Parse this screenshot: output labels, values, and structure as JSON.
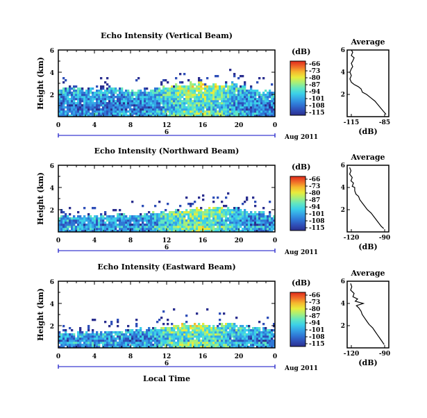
{
  "colors": {
    "colormap": [
      "#2b2f8f",
      "#2f4fb8",
      "#2f78d6",
      "#35a3e6",
      "#3cd0e8",
      "#62e6c0",
      "#a6ef7a",
      "#e8ec3c",
      "#f6b92e",
      "#f06a28",
      "#e02a1c"
    ],
    "frame": "#000000",
    "timeline": "#3b3bd0"
  },
  "labels": {
    "height_axis": "Height (km)",
    "db_unit": "(dB)",
    "db_axis": "(dB)",
    "average_title": "Average",
    "date": "Aug 2011",
    "local_time": "Local Time",
    "timeline_mark": "6"
  },
  "colorbar_ticks": [
    "-66",
    "-73",
    "-80",
    "-87",
    "-94",
    "-101",
    "-108",
    "-115"
  ],
  "x_ticks": [
    "0",
    "4",
    "8",
    "12",
    "16",
    "20",
    "0"
  ],
  "y_ticks": [
    "6",
    "4",
    "2"
  ],
  "chart_data": [
    {
      "type": "heatmap",
      "title": "Echo Intensity (Vertical Beam)",
      "ylabel": "Height (km)",
      "xlabel": "",
      "x_unit": "hour (local time)",
      "xlim": [
        0,
        24
      ],
      "ylim": [
        0,
        6
      ],
      "colorbar": {
        "label": "(dB)",
        "range": [
          -115,
          -66
        ]
      },
      "echo_top_km": [
        [
          0,
          2.6
        ],
        [
          2,
          2.6
        ],
        [
          4,
          2.4
        ],
        [
          6,
          2.5
        ],
        [
          8,
          2.3
        ],
        [
          10,
          2.3
        ],
        [
          11,
          2.5
        ],
        [
          12,
          2.7
        ],
        [
          13,
          2.9
        ],
        [
          14,
          2.9
        ],
        [
          15,
          3.0
        ],
        [
          16,
          3.0
        ],
        [
          17,
          2.9
        ],
        [
          18,
          2.8
        ],
        [
          19,
          3.1
        ],
        [
          20,
          2.8
        ],
        [
          21,
          2.6
        ],
        [
          22,
          2.4
        ],
        [
          23,
          2.3
        ],
        [
          24,
          2.2
        ]
      ],
      "average_profile": {
        "title": "Average",
        "xlabel": "(dB)",
        "xlim": [
          -115,
          -85
        ],
        "x_ticks": [
          "-115",
          "-85"
        ],
        "points": [
          [
            -112,
            6.0
          ],
          [
            -111,
            5.8
          ],
          [
            -112,
            5.5
          ],
          [
            -110,
            5.3
          ],
          [
            -111,
            5.0
          ],
          [
            -112,
            4.8
          ],
          [
            -111,
            4.5
          ],
          [
            -112,
            4.3
          ],
          [
            -113,
            4.0
          ],
          [
            -112,
            3.7
          ],
          [
            -113,
            3.4
          ],
          [
            -112,
            3.1
          ],
          [
            -110,
            2.9
          ],
          [
            -107,
            2.7
          ],
          [
            -105,
            2.5
          ],
          [
            -104,
            2.2
          ],
          [
            -101,
            2.0
          ],
          [
            -98,
            1.7
          ],
          [
            -95,
            1.4
          ],
          [
            -93,
            1.1
          ],
          [
            -91,
            0.8
          ],
          [
            -89,
            0.5
          ],
          [
            -87,
            0.2
          ]
        ]
      }
    },
    {
      "type": "heatmap",
      "title": "Echo Intensity (Northward Beam)",
      "ylabel": "Height (km)",
      "xlabel": "",
      "x_unit": "hour (local time)",
      "xlim": [
        0,
        24
      ],
      "ylim": [
        0,
        6
      ],
      "colorbar": {
        "label": "(dB)",
        "range": [
          -115,
          -66
        ]
      },
      "echo_top_km": [
        [
          0,
          1.4
        ],
        [
          2,
          1.4
        ],
        [
          4,
          1.4
        ],
        [
          6,
          1.5
        ],
        [
          8,
          1.6
        ],
        [
          10,
          1.6
        ],
        [
          11,
          1.7
        ],
        [
          12,
          1.9
        ],
        [
          13,
          2.0
        ],
        [
          14,
          2.0
        ],
        [
          15,
          2.1
        ],
        [
          16,
          2.1
        ],
        [
          17,
          2.1
        ],
        [
          18,
          2.2
        ],
        [
          19,
          2.2
        ],
        [
          20,
          2.1
        ],
        [
          21,
          1.9
        ],
        [
          22,
          1.8
        ],
        [
          23,
          1.7
        ],
        [
          24,
          1.6
        ]
      ],
      "average_profile": {
        "title": "Average",
        "xlabel": "(dB)",
        "xlim": [
          -120,
          -87
        ],
        "x_ticks": [
          "-120",
          "-90"
        ],
        "points": [
          [
            -118,
            5.8
          ],
          [
            -117,
            5.5
          ],
          [
            -118,
            5.2
          ],
          [
            -116,
            4.9
          ],
          [
            -117,
            4.6
          ],
          [
            -115,
            4.4
          ],
          [
            -116,
            4.1
          ],
          [
            -114,
            4.0
          ],
          [
            -114,
            3.7
          ],
          [
            -113,
            3.4
          ],
          [
            -111,
            3.2
          ],
          [
            -110,
            2.9
          ],
          [
            -108,
            2.6
          ],
          [
            -106,
            2.3
          ],
          [
            -104,
            2.0
          ],
          [
            -101,
            1.7
          ],
          [
            -99,
            1.4
          ],
          [
            -97,
            1.1
          ],
          [
            -95,
            0.8
          ],
          [
            -93,
            0.5
          ],
          [
            -91,
            0.3
          ]
        ]
      }
    },
    {
      "type": "heatmap",
      "title": "Echo Intensity (Eastward Beam)",
      "ylabel": "Height (km)",
      "xlabel": "Local Time",
      "x_unit": "hour (local time)",
      "xlim": [
        0,
        24
      ],
      "ylim": [
        0,
        6
      ],
      "colorbar": {
        "label": "(dB)",
        "range": [
          -115,
          -66
        ]
      },
      "echo_top_km": [
        [
          0,
          1.3
        ],
        [
          2,
          1.3
        ],
        [
          4,
          1.4
        ],
        [
          6,
          1.4
        ],
        [
          8,
          1.6
        ],
        [
          10,
          1.7
        ],
        [
          11,
          1.8
        ],
        [
          12,
          1.9
        ],
        [
          13,
          2.0
        ],
        [
          14,
          2.1
        ],
        [
          15,
          2.1
        ],
        [
          16,
          2.2
        ],
        [
          17,
          2.0
        ],
        [
          18,
          2.1
        ],
        [
          19,
          2.2
        ],
        [
          20,
          2.0
        ],
        [
          21,
          1.9
        ],
        [
          22,
          1.8
        ],
        [
          23,
          1.7
        ],
        [
          24,
          1.6
        ]
      ],
      "average_profile": {
        "title": "Average",
        "xlabel": "(dB)",
        "xlim": [
          -122,
          -86
        ],
        "x_ticks": [
          "-120",
          "-90"
        ],
        "points": [
          [
            -119,
            5.8
          ],
          [
            -118,
            5.5
          ],
          [
            -119,
            5.2
          ],
          [
            -116,
            4.9
          ],
          [
            -117,
            4.6
          ],
          [
            -113,
            4.4
          ],
          [
            -115,
            4.2
          ],
          [
            -108,
            4.0
          ],
          [
            -114,
            3.8
          ],
          [
            -112,
            3.6
          ],
          [
            -110,
            3.3
          ],
          [
            -109,
            3.0
          ],
          [
            -107,
            2.7
          ],
          [
            -105,
            2.4
          ],
          [
            -103,
            2.1
          ],
          [
            -100,
            1.8
          ],
          [
            -98,
            1.5
          ],
          [
            -96,
            1.2
          ],
          [
            -94,
            0.9
          ],
          [
            -92,
            0.6
          ],
          [
            -90,
            0.3
          ]
        ]
      }
    }
  ]
}
